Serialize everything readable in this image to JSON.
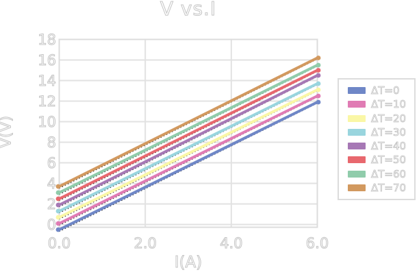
{
  "title": "V vs.I",
  "chart_data": {
    "type": "line",
    "title": "V vs.I",
    "xlabel": "I(A)",
    "ylabel": "V(V)",
    "xlim": [
      0,
      6
    ],
    "ylim": [
      -0.7,
      18
    ],
    "grid": true,
    "legend_position": "right",
    "x_ticks": [
      "0.0",
      "2.0",
      "4.0",
      "6.0"
    ],
    "x_tick_vals": [
      0,
      2,
      4,
      6
    ],
    "y_ticks": [
      "0",
      "2",
      "4",
      "6",
      "8",
      "10",
      "12",
      "14",
      "16",
      "18"
    ],
    "y_tick_vals": [
      0,
      2,
      4,
      6,
      8,
      10,
      12,
      14,
      16,
      18
    ],
    "x": [
      0,
      6
    ],
    "series": [
      {
        "name": "ΔT=0",
        "color": "#6f87c7",
        "values": [
          -0.5,
          11.9
        ]
      },
      {
        "name": "ΔT=10",
        "color": "#e07cb4",
        "values": [
          0.1,
          12.5
        ]
      },
      {
        "name": "ΔT=20",
        "color": "#faf7a6",
        "values": [
          0.7,
          13.1
        ]
      },
      {
        "name": "ΔT=30",
        "color": "#99d5de",
        "values": [
          1.3,
          13.7
        ]
      },
      {
        "name": "ΔT=40",
        "color": "#a678b5",
        "values": [
          1.9,
          14.5
        ]
      },
      {
        "name": "ΔT=50",
        "color": "#e8686e",
        "values": [
          2.5,
          15.0
        ]
      },
      {
        "name": "ΔT=60",
        "color": "#90ccab",
        "values": [
          3.1,
          15.5
        ]
      },
      {
        "name": "ΔT=70",
        "color": "#d2995f",
        "values": [
          3.7,
          16.2
        ]
      }
    ],
    "fit_line_style": "black dotted linear fit behind each series",
    "colors": {
      "grid": "#e2e2e2",
      "frame": "#dcdcdc",
      "fit_line": "#1a1a1a",
      "text_outline": "#c4c4c4",
      "background": "#ffffff"
    }
  }
}
